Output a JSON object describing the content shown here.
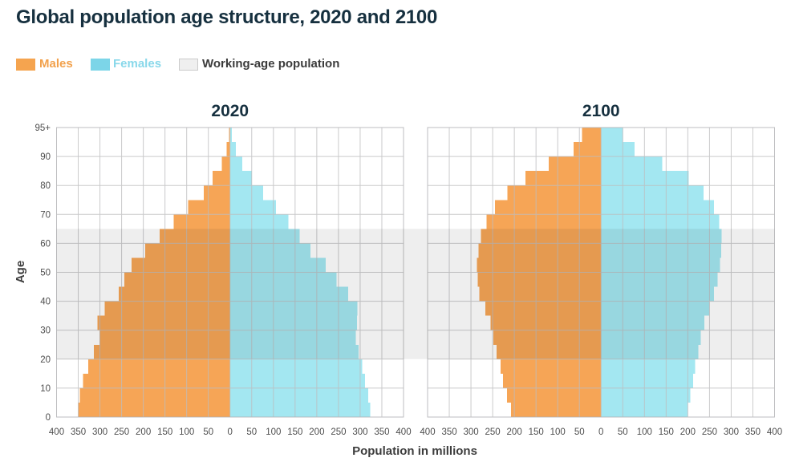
{
  "page": {
    "title": "Global population age structure, 2020 and 2100"
  },
  "legend": {
    "males": {
      "label": "Males",
      "swatch_color": "#F5A44F",
      "text_color": "#F2A14C"
    },
    "females": {
      "label": "Females",
      "swatch_color": "#7CD5E8",
      "text_color": "#89D8EA"
    },
    "working_age": {
      "label": "Working-age population",
      "swatch_color": "#EFEFEF",
      "text_color": "#3B3B3B"
    }
  },
  "axes": {
    "y_label": "Age",
    "x_label": "Population in millions",
    "y_tick_labels": [
      "95+",
      "90",
      "80",
      "70",
      "60",
      "50",
      "40",
      "30",
      "20",
      "10",
      "0"
    ],
    "y_tick_ages": [
      100,
      90,
      80,
      70,
      60,
      50,
      40,
      30,
      20,
      10,
      0
    ],
    "x_tick_labels": [
      "400",
      "350",
      "300",
      "250",
      "200",
      "150",
      "100",
      "50",
      "0",
      "50",
      "100",
      "150",
      "200",
      "250",
      "300",
      "350",
      "400"
    ]
  },
  "chart_data": [
    {
      "type": "bar",
      "subtype": "population-pyramid",
      "title": "2020",
      "x_unit": "millions",
      "xlim_per_side": [
        0,
        400
      ],
      "grid": true,
      "age_groups": [
        "0-4",
        "5-9",
        "10-14",
        "15-19",
        "20-24",
        "25-29",
        "30-34",
        "35-39",
        "40-44",
        "45-49",
        "50-54",
        "55-59",
        "60-64",
        "65-69",
        "70-74",
        "75-79",
        "80-84",
        "85-89",
        "90-94",
        "95+"
      ],
      "series": [
        {
          "name": "Males",
          "side": "left",
          "color": "#F6A556",
          "values": [
            350,
            346,
            339,
            327,
            314,
            301,
            306,
            289,
            257,
            244,
            227,
            196,
            162,
            130,
            97,
            61,
            40,
            19,
            8,
            2
          ]
        },
        {
          "name": "Females",
          "side": "right",
          "color": "#A3E7F1",
          "values": [
            323,
            319,
            311,
            305,
            296,
            290,
            293,
            294,
            272,
            246,
            221,
            185,
            160,
            135,
            106,
            76,
            50,
            28,
            13,
            4
          ]
        }
      ],
      "working_age_band": {
        "from_age": 20,
        "to_age": 65
      }
    },
    {
      "type": "bar",
      "subtype": "population-pyramid",
      "title": "2100",
      "x_unit": "millions",
      "xlim_per_side": [
        0,
        400
      ],
      "grid": true,
      "age_groups": [
        "0-4",
        "5-9",
        "10-14",
        "15-19",
        "20-24",
        "25-29",
        "30-34",
        "35-39",
        "40-44",
        "45-49",
        "50-54",
        "55-59",
        "60-64",
        "65-69",
        "70-74",
        "75-79",
        "80-84",
        "85-89",
        "90-94",
        "95+"
      ],
      "series": [
        {
          "name": "Males",
          "side": "left",
          "color": "#F6A556",
          "values": [
            208,
            217,
            226,
            232,
            241,
            248,
            255,
            267,
            281,
            284,
            286,
            283,
            277,
            264,
            245,
            216,
            174,
            121,
            63,
            44
          ]
        },
        {
          "name": "Females",
          "side": "right",
          "color": "#A3E7F1",
          "values": [
            199,
            206,
            212,
            217,
            224,
            230,
            238,
            249,
            260,
            269,
            274,
            277,
            278,
            272,
            260,
            236,
            202,
            141,
            77,
            50
          ]
        }
      ],
      "working_age_band": {
        "from_age": 20,
        "to_age": 65
      }
    }
  ]
}
